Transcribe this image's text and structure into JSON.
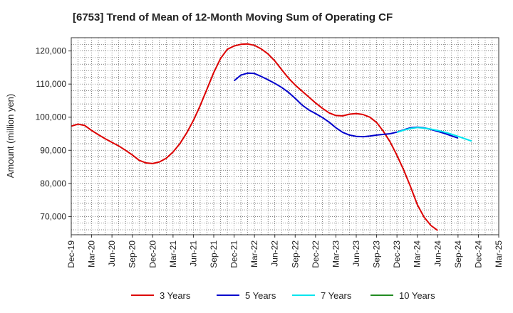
{
  "chart_data": {
    "type": "line",
    "title": "[6753]  Trend of Mean of 12-Month Moving Sum of Operating CF",
    "xlabel": "",
    "ylabel": "Amount (million yen)",
    "ylim": [
      64500,
      124000
    ],
    "yticks": [
      70000,
      80000,
      90000,
      100000,
      110000,
      120000
    ],
    "ytick_labels": [
      "70,000",
      "80,000",
      "90,000",
      "100,000",
      "110,000",
      "120,000"
    ],
    "x_categories": [
      "Dec-19",
      "Mar-20",
      "Jun-20",
      "Sep-20",
      "Dec-20",
      "Mar-21",
      "Jun-21",
      "Sep-21",
      "Dec-21",
      "Mar-22",
      "Jun-22",
      "Sep-22",
      "Dec-22",
      "Mar-23",
      "Jun-23",
      "Sep-23",
      "Dec-23",
      "Mar-24",
      "Jun-24",
      "Sep-24",
      "Dec-24",
      "Mar-25"
    ],
    "grid": true,
    "legend_position": "bottom",
    "series": [
      {
        "name": "3 Years",
        "color": "#dd0000",
        "start_index": 0,
        "values": [
          97300,
          97900,
          97500,
          96000,
          94700,
          93500,
          92400,
          91300,
          90000,
          88600,
          87000,
          86200,
          86000,
          86500,
          87600,
          89500,
          92000,
          95200,
          99000,
          103500,
          108500,
          113500,
          117700,
          120500,
          121500,
          122000,
          122100,
          121700,
          120600,
          119100,
          117000,
          114400,
          111800,
          109700,
          107900,
          106100,
          104300,
          102700,
          101300,
          100500,
          100400,
          100900,
          101100,
          100800,
          100000,
          98400,
          95700,
          92500,
          88500,
          84000,
          79000,
          73600,
          69800,
          67300,
          65800
        ]
      },
      {
        "name": "5 Years",
        "color": "#0000cc",
        "start_index": 24,
        "values": [
          111000,
          112700,
          113300,
          113200,
          112300,
          111300,
          110200,
          109000,
          107500,
          105700,
          103700,
          102200,
          101100,
          99900,
          98500,
          96800,
          95400,
          94600,
          94200,
          94100,
          94300,
          94600,
          94800,
          95000,
          95500,
          96200,
          96800,
          97000,
          96800,
          96300,
          95700,
          95100,
          94400,
          93700
        ]
      },
      {
        "name": "7 Years",
        "color": "#00e5ee",
        "start_index": 48,
        "values": [
          95400,
          96100,
          96600,
          96900,
          96700,
          96400,
          96000,
          95500,
          94900,
          94200,
          93500,
          92800
        ]
      },
      {
        "name": "10 Years",
        "color": "#228b22",
        "start_index": 78,
        "values": []
      }
    ]
  }
}
